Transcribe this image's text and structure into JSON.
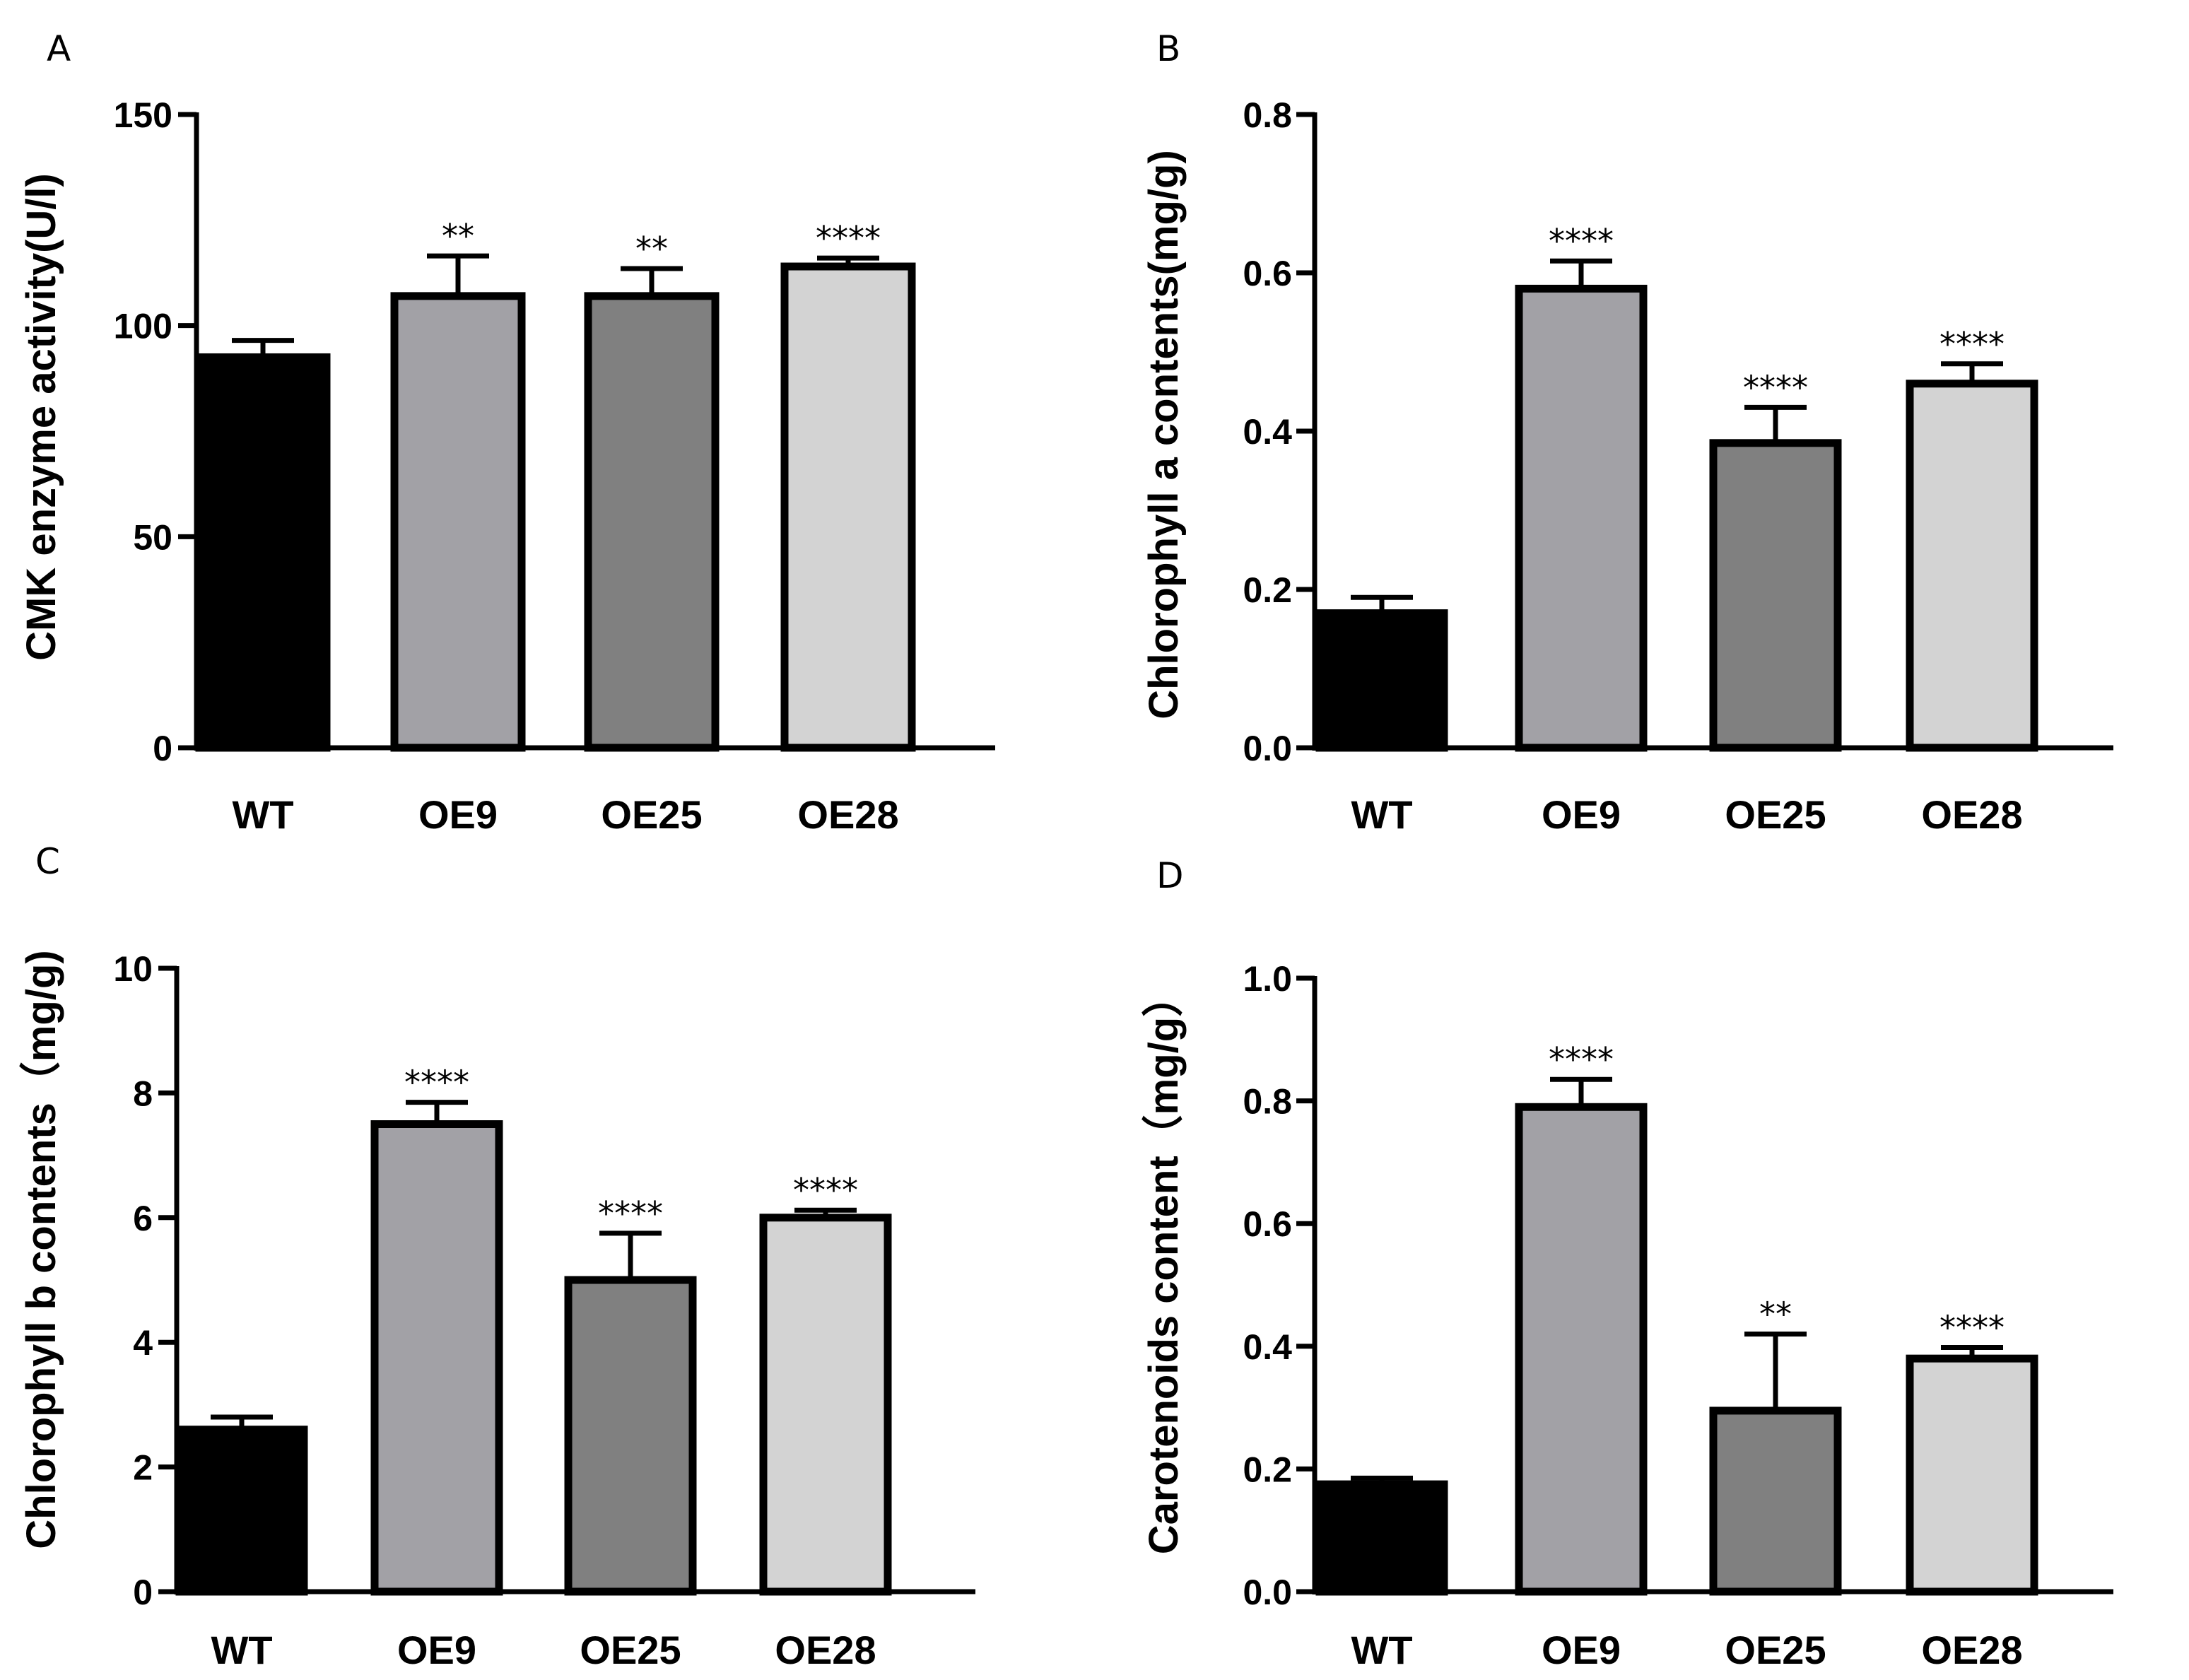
{
  "colors": {
    "axis": "#000000",
    "WT": "#000000",
    "OE9": "#a2a1a6",
    "OE25": "#808080",
    "OE28": "#d3d3d3"
  },
  "chart_data": [
    {
      "panel": "A",
      "type": "bar",
      "ylabel": "CMK enzyme activity(U/l)",
      "categories": [
        "WT",
        "OE9",
        "OE25",
        "OE28"
      ],
      "values": [
        92.5,
        107,
        107,
        114
      ],
      "errors": [
        4,
        9.5,
        6.5,
        2
      ],
      "significance": [
        "",
        "**",
        "**",
        "****"
      ],
      "ylim": [
        0,
        150
      ],
      "yticks": [
        0,
        50,
        100,
        150
      ],
      "ytick_labels": [
        "0",
        "50",
        "100",
        "150"
      ]
    },
    {
      "panel": "B",
      "type": "bar",
      "ylabel": "Chlorophyll a contents(mg/g)",
      "categories": [
        "WT",
        "OE9",
        "OE25",
        "OE28"
      ],
      "values": [
        0.17,
        0.58,
        0.385,
        0.46
      ],
      "errors": [
        0.02,
        0.035,
        0.045,
        0.025
      ],
      "significance": [
        "",
        "****",
        "****",
        "****"
      ],
      "ylim": [
        0,
        0.8
      ],
      "yticks": [
        0,
        0.2,
        0.4,
        0.6,
        0.8
      ],
      "ytick_labels": [
        "0.0",
        "0.2",
        "0.4",
        "0.6",
        "0.8"
      ]
    },
    {
      "panel": "C",
      "type": "bar",
      "ylabel": "Chlorophyll b contents（mg/g)",
      "categories": [
        "WT",
        "OE9",
        "OE25",
        "OE28"
      ],
      "values": [
        2.6,
        7.5,
        5.0,
        6.0
      ],
      "errors": [
        0.2,
        0.35,
        0.75,
        0.12
      ],
      "significance": [
        "",
        "****",
        "****",
        "****"
      ],
      "ylim": [
        0,
        10
      ],
      "yticks": [
        0,
        2,
        4,
        6,
        8,
        10
      ],
      "ytick_labels": [
        "0",
        "2",
        "4",
        "6",
        "8",
        "10"
      ]
    },
    {
      "panel": "D",
      "type": "bar",
      "ylabel": "Carotenoids content（mg/g）",
      "categories": [
        "WT",
        "OE9",
        "OE25",
        "OE28"
      ],
      "values": [
        0.175,
        0.79,
        0.295,
        0.38
      ],
      "errors": [
        0.01,
        0.045,
        0.125,
        0.018
      ],
      "significance": [
        "",
        "****",
        "**",
        "****"
      ],
      "ylim": [
        0,
        1.0
      ],
      "yticks": [
        0,
        0.2,
        0.4,
        0.6,
        0.8,
        1.0
      ],
      "ytick_labels": [
        "0.0",
        "0.2",
        "0.4",
        "0.6",
        "0.8",
        "1.0"
      ]
    }
  ]
}
